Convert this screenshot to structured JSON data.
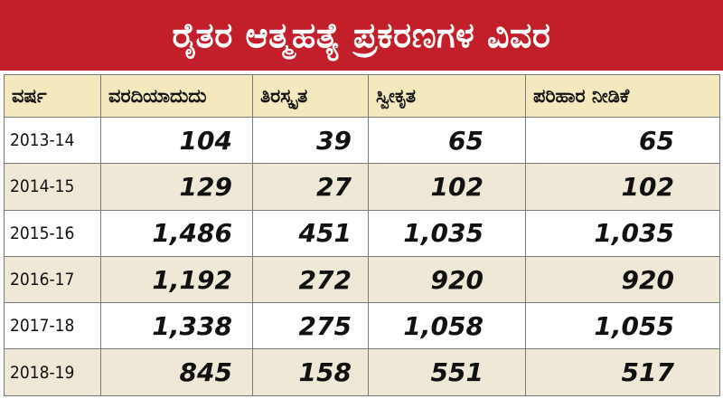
{
  "title": "ರೈತರ ಆತ್ಮಹತ್ಯೆ ಪ್ರಕರಣಗಳ ವಿವರ",
  "colors": {
    "title_bg": "#c21f2b",
    "header_bg": "#f4e8bf",
    "stripe_bg": "#efe8d6"
  },
  "chart_data": {
    "type": "table",
    "title": "ರೈತರ ಆತ್ಮಹತ್ಯೆ ಪ್ರಕರಣಗಳ ವಿವರ",
    "columns": [
      "ವರ್ಷ",
      "ವರದಿಯಾದುದು",
      "ತಿರಸ್ಕೃತ",
      "ಸ್ವೀಕೃತ",
      "ಪರಿಹಾರ ನೀಡಿಕೆ"
    ],
    "rows": [
      [
        "2013-14",
        "104",
        "39",
        "65",
        "65"
      ],
      [
        "2014-15",
        "129",
        "27",
        "102",
        "102"
      ],
      [
        "2015-16",
        "1,486",
        "451",
        "1,035",
        "1,035"
      ],
      [
        "2016-17",
        "1,192",
        "272",
        "920",
        "920"
      ],
      [
        "2017-18",
        "1,338",
        "275",
        "1,058",
        "1,055"
      ],
      [
        "2018-19",
        "845",
        "158",
        "551",
        "517"
      ]
    ]
  }
}
